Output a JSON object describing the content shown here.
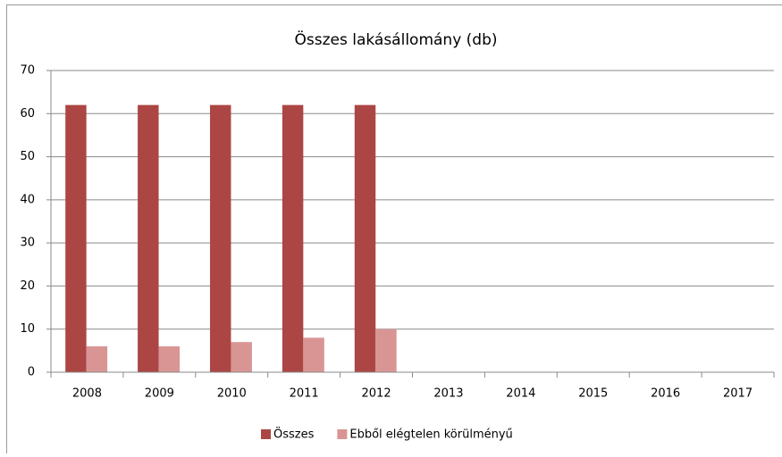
{
  "chart_data": {
    "type": "bar",
    "title": "Összes lakásállomány (db)",
    "categories": [
      "2008",
      "2009",
      "2010",
      "2011",
      "2012",
      "2013",
      "2014",
      "2015",
      "2016",
      "2017"
    ],
    "series": [
      {
        "name": "Összes",
        "color": "#ab4644",
        "values": [
          62,
          62,
          62,
          62,
          62,
          null,
          null,
          null,
          null,
          null
        ]
      },
      {
        "name": "Ebből elégtelen körülményű",
        "color": "#d99594",
        "values": [
          6,
          6,
          7,
          8,
          10,
          null,
          null,
          null,
          null,
          null
        ]
      }
    ],
    "ylim": [
      0,
      70
    ],
    "yticks": [
      0,
      10,
      20,
      30,
      40,
      50,
      60,
      70
    ],
    "grid": true,
    "legend": "bottom"
  }
}
